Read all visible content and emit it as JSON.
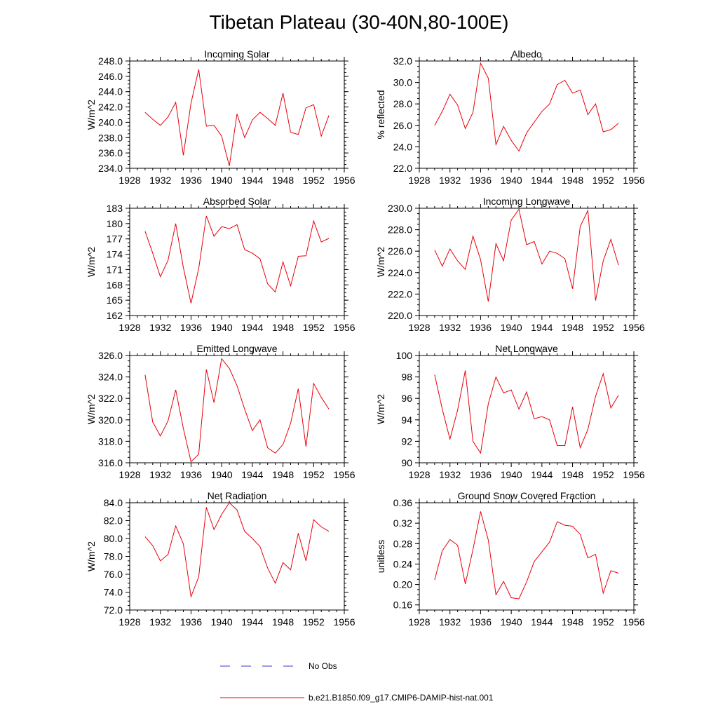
{
  "figure": {
    "title": "Tibetan Plateau (30-40N,80-100E)",
    "legend": [
      {
        "label": "No Obs",
        "color": "#3a3acc",
        "style": "dashed"
      },
      {
        "label": "b.e21.B1850.f09_g17.CMIP6-DAMIP-hist-nat.001",
        "color": "#e8000b",
        "style": "solid"
      }
    ]
  },
  "chart_data": [
    {
      "type": "line",
      "title": "Incoming Solar",
      "ylabel": "W/m^2",
      "xlim": [
        1928,
        1956
      ],
      "xticks": [
        1928,
        1932,
        1936,
        1940,
        1944,
        1948,
        1952,
        1956
      ],
      "ylim": [
        234,
        248
      ],
      "yticks": [
        "234.0",
        "236.0",
        "238.0",
        "240.0",
        "242.0",
        "244.0",
        "246.0",
        "248.0"
      ],
      "x": [
        1930,
        1931,
        1932,
        1933,
        1934,
        1935,
        1936,
        1937,
        1938,
        1939,
        1940,
        1941,
        1942,
        1943,
        1944,
        1945,
        1946,
        1947,
        1948,
        1949,
        1950,
        1951,
        1952,
        1953,
        1954
      ],
      "series": [
        {
          "values": [
            241.3,
            240.4,
            239.6,
            240.7,
            242.6,
            235.7,
            242.5,
            246.9,
            239.5,
            239.6,
            238.2,
            234.3,
            241.1,
            238.0,
            240.3,
            241.3,
            240.5,
            239.6,
            243.8,
            238.7,
            238.4,
            241.9,
            242.3,
            238.2,
            240.9
          ]
        }
      ]
    },
    {
      "type": "line",
      "title": "Albedo",
      "ylabel": "% reflected",
      "xlim": [
        1928,
        1956
      ],
      "xticks": [
        1928,
        1932,
        1936,
        1940,
        1944,
        1948,
        1952,
        1956
      ],
      "ylim": [
        22,
        32
      ],
      "yticks": [
        "22.0",
        "24.0",
        "26.0",
        "28.0",
        "30.0",
        "32.0"
      ],
      "x": [
        1930,
        1931,
        1932,
        1933,
        1934,
        1935,
        1936,
        1937,
        1938,
        1939,
        1940,
        1941,
        1942,
        1943,
        1944,
        1945,
        1946,
        1947,
        1948,
        1949,
        1950,
        1951,
        1952,
        1953,
        1954
      ],
      "series": [
        {
          "values": [
            26.0,
            27.3,
            28.9,
            27.9,
            25.7,
            27.2,
            31.8,
            30.4,
            24.2,
            25.9,
            24.6,
            23.6,
            25.3,
            26.3,
            27.3,
            28.0,
            29.8,
            30.2,
            29.0,
            29.3,
            27.0,
            28.0,
            25.4,
            25.6,
            26.2
          ]
        }
      ]
    },
    {
      "type": "line",
      "title": "Absorbed Solar",
      "ylabel": "W/m^2",
      "xlim": [
        1928,
        1956
      ],
      "xticks": [
        1928,
        1932,
        1936,
        1940,
        1944,
        1948,
        1952,
        1956
      ],
      "ylim": [
        162,
        183
      ],
      "yticks": [
        "162",
        "165",
        "168",
        "171",
        "174",
        "177",
        "180",
        "183"
      ],
      "x": [
        1930,
        1931,
        1932,
        1933,
        1934,
        1935,
        1936,
        1937,
        1938,
        1939,
        1940,
        1941,
        1942,
        1943,
        1944,
        1945,
        1946,
        1947,
        1948,
        1949,
        1950,
        1951,
        1952,
        1953,
        1954
      ],
      "series": [
        {
          "values": [
            178.5,
            174.2,
            169.6,
            172.8,
            180.0,
            171.4,
            164.4,
            171.2,
            181.5,
            177.5,
            179.4,
            179.0,
            179.8,
            174.9,
            174.2,
            173.1,
            168.2,
            166.6,
            172.5,
            167.8,
            173.6,
            173.7,
            180.5,
            176.4,
            177.1
          ]
        }
      ]
    },
    {
      "type": "line",
      "title": "Incoming Longwave",
      "ylabel": "W/m^2",
      "xlim": [
        1928,
        1956
      ],
      "xticks": [
        1928,
        1932,
        1936,
        1940,
        1944,
        1948,
        1952,
        1956
      ],
      "ylim": [
        220,
        230
      ],
      "yticks": [
        "220.0",
        "222.0",
        "224.0",
        "226.0",
        "228.0",
        "230.0"
      ],
      "x": [
        1930,
        1931,
        1932,
        1933,
        1934,
        1935,
        1936,
        1937,
        1938,
        1939,
        1940,
        1941,
        1942,
        1943,
        1944,
        1945,
        1946,
        1947,
        1948,
        1949,
        1950,
        1951,
        1952,
        1953,
        1954
      ],
      "series": [
        {
          "values": [
            226.1,
            224.6,
            226.2,
            225.1,
            224.3,
            227.4,
            225.2,
            221.3,
            226.7,
            225.1,
            228.9,
            229.9,
            226.6,
            226.9,
            224.8,
            226.0,
            225.8,
            225.3,
            222.5,
            228.3,
            229.8,
            221.4,
            225.1,
            227.1,
            224.7
          ]
        }
      ]
    },
    {
      "type": "line",
      "title": "Emitted Longwave",
      "ylabel": "W/m^2",
      "xlim": [
        1928,
        1956
      ],
      "xticks": [
        1928,
        1932,
        1936,
        1940,
        1944,
        1948,
        1952,
        1956
      ],
      "ylim": [
        316,
        326
      ],
      "yticks": [
        "316.0",
        "318.0",
        "320.0",
        "322.0",
        "324.0",
        "326.0"
      ],
      "x": [
        1930,
        1931,
        1932,
        1933,
        1934,
        1935,
        1936,
        1937,
        1938,
        1939,
        1940,
        1941,
        1942,
        1943,
        1944,
        1945,
        1946,
        1947,
        1948,
        1949,
        1950,
        1951,
        1952,
        1953,
        1954
      ],
      "series": [
        {
          "values": [
            324.2,
            319.8,
            318.5,
            319.9,
            322.8,
            319.2,
            316.1,
            316.8,
            324.7,
            321.6,
            325.7,
            324.8,
            323.2,
            321.0,
            319.0,
            320.0,
            317.4,
            316.9,
            317.7,
            319.7,
            322.9,
            317.5,
            323.4,
            322.1,
            321.0
          ]
        }
      ]
    },
    {
      "type": "line",
      "title": "Net Longwave",
      "ylabel": "W/m^2",
      "xlim": [
        1928,
        1956
      ],
      "xticks": [
        1928,
        1932,
        1936,
        1940,
        1944,
        1948,
        1952,
        1956
      ],
      "ylim": [
        90,
        100
      ],
      "yticks": [
        "90",
        "92",
        "94",
        "96",
        "98",
        "100"
      ],
      "x": [
        1930,
        1931,
        1932,
        1933,
        1934,
        1935,
        1936,
        1937,
        1938,
        1939,
        1940,
        1941,
        1942,
        1943,
        1944,
        1945,
        1946,
        1947,
        1948,
        1949,
        1950,
        1951,
        1952,
        1953,
        1954
      ],
      "series": [
        {
          "values": [
            98.2,
            95.0,
            92.2,
            94.9,
            98.6,
            92.0,
            90.9,
            95.5,
            98.0,
            96.5,
            96.8,
            95.0,
            96.6,
            94.1,
            94.3,
            94.0,
            91.6,
            91.6,
            95.2,
            91.4,
            93.1,
            96.2,
            98.3,
            95.1,
            96.3
          ]
        }
      ]
    },
    {
      "type": "line",
      "title": "Net Radiation",
      "ylabel": "W/m^2",
      "xlim": [
        1928,
        1956
      ],
      "xticks": [
        1928,
        1932,
        1936,
        1940,
        1944,
        1948,
        1952,
        1956
      ],
      "ylim": [
        72,
        84
      ],
      "yticks": [
        "72.0",
        "74.0",
        "76.0",
        "78.0",
        "80.0",
        "82.0",
        "84.0"
      ],
      "x": [
        1930,
        1931,
        1932,
        1933,
        1934,
        1935,
        1936,
        1937,
        1938,
        1939,
        1940,
        1941,
        1942,
        1943,
        1944,
        1945,
        1946,
        1947,
        1948,
        1949,
        1950,
        1951,
        1952,
        1953,
        1954
      ],
      "series": [
        {
          "values": [
            80.2,
            79.2,
            77.5,
            78.2,
            81.4,
            79.4,
            73.5,
            75.7,
            83.5,
            81.0,
            82.7,
            84.0,
            83.2,
            80.8,
            80.0,
            79.1,
            76.7,
            75.0,
            77.3,
            76.5,
            80.6,
            77.5,
            82.1,
            81.3,
            80.8
          ]
        }
      ]
    },
    {
      "type": "line",
      "title": "Ground Snow Covered Fraction",
      "ylabel": "unitless",
      "xlim": [
        1928,
        1956
      ],
      "xticks": [
        1928,
        1932,
        1936,
        1940,
        1944,
        1948,
        1952,
        1956
      ],
      "ylim": [
        0.15,
        0.36
      ],
      "yticks": [
        "0.16",
        "0.20",
        "0.24",
        "0.28",
        "0.32",
        "0.36"
      ],
      "x": [
        1930,
        1931,
        1932,
        1933,
        1934,
        1935,
        1936,
        1937,
        1938,
        1939,
        1940,
        1941,
        1942,
        1943,
        1944,
        1945,
        1946,
        1947,
        1948,
        1949,
        1950,
        1951,
        1952,
        1953,
        1954
      ],
      "series": [
        {
          "values": [
            0.209,
            0.266,
            0.288,
            0.277,
            0.201,
            0.268,
            0.343,
            0.287,
            0.18,
            0.206,
            0.174,
            0.172,
            0.205,
            0.245,
            0.264,
            0.283,
            0.323,
            0.316,
            0.314,
            0.298,
            0.252,
            0.259,
            0.183,
            0.227,
            0.222
          ]
        }
      ]
    }
  ]
}
